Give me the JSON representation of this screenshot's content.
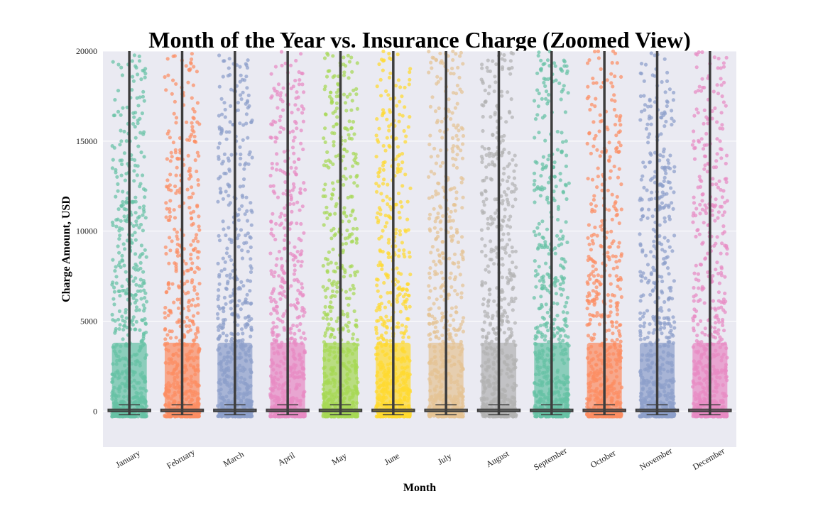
{
  "chart_data": {
    "type": "box+strip",
    "title": "Month of the Year vs. Insurance Charge (Zoomed View)",
    "xlabel": "Month",
    "ylabel": "Charge Amount, USD",
    "ylim": [
      -2000,
      20000
    ],
    "yticks": [
      0,
      5000,
      10000,
      15000,
      20000
    ],
    "grid": true,
    "background": "#eaeaf2",
    "categories": [
      "January",
      "February",
      "March",
      "April",
      "May",
      "June",
      "July",
      "August",
      "September",
      "October",
      "November",
      "December"
    ],
    "colors": [
      "#66c2a5",
      "#fc8d62",
      "#8da0cb",
      "#e78ac3",
      "#a6d854",
      "#ffd92f",
      "#e5c494",
      "#b3b3b3",
      "#66c2a5",
      "#fc8d62",
      "#8da0cb",
      "#e78ac3"
    ],
    "box_stats": [
      {
        "q1": 0,
        "median": 0,
        "q3": 100,
        "whisker_low": -200,
        "whisker_high": 350
      },
      {
        "q1": 0,
        "median": 0,
        "q3": 100,
        "whisker_low": -200,
        "whisker_high": 350
      },
      {
        "q1": 0,
        "median": 0,
        "q3": 100,
        "whisker_low": -200,
        "whisker_high": 350
      },
      {
        "q1": 0,
        "median": 0,
        "q3": 100,
        "whisker_low": -200,
        "whisker_high": 350
      },
      {
        "q1": 0,
        "median": 0,
        "q3": 100,
        "whisker_low": -200,
        "whisker_high": 350
      },
      {
        "q1": 0,
        "median": 0,
        "q3": 100,
        "whisker_low": -200,
        "whisker_high": 350
      },
      {
        "q1": 0,
        "median": 0,
        "q3": 100,
        "whisker_low": -200,
        "whisker_high": 350
      },
      {
        "q1": 0,
        "median": 0,
        "q3": 100,
        "whisker_low": -200,
        "whisker_high": 350
      },
      {
        "q1": 0,
        "median": 0,
        "q3": 100,
        "whisker_low": -200,
        "whisker_high": 350
      },
      {
        "q1": 0,
        "median": 0,
        "q3": 100,
        "whisker_low": -200,
        "whisker_high": 350
      },
      {
        "q1": 0,
        "median": 0,
        "q3": 100,
        "whisker_low": -200,
        "whisker_high": 350
      },
      {
        "q1": 0,
        "median": 0,
        "q3": 100,
        "whisker_low": -200,
        "whisker_high": 350
      }
    ]
  }
}
